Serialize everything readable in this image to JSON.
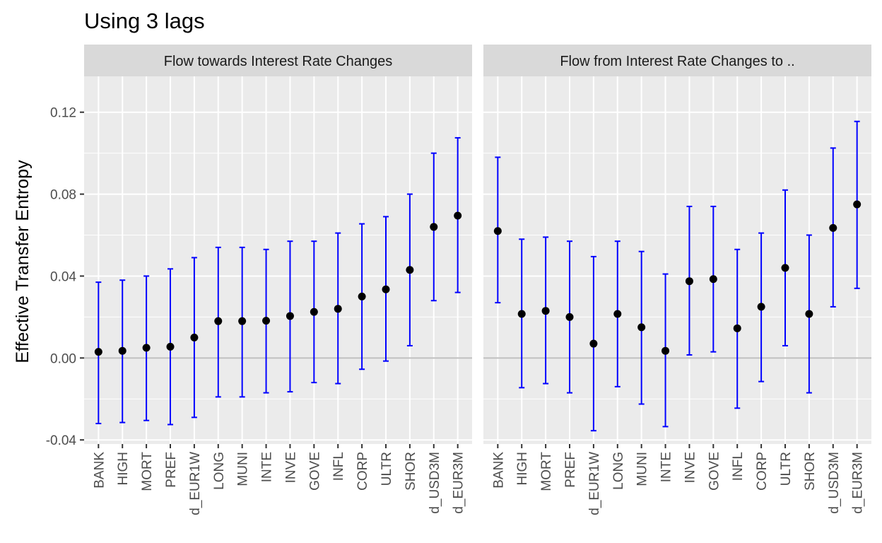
{
  "chart_data": {
    "type": "scatter",
    "title": "Using 3 lags",
    "ylabel": "Effective Transfer Entropy",
    "xlabel": "",
    "ylim": [
      -0.042,
      0.1375
    ],
    "yticks": [
      "-0.04",
      "0.00",
      "0.04",
      "0.08",
      "0.12"
    ],
    "ytick_values": [
      -0.04,
      0.0,
      0.04,
      0.08,
      0.12
    ],
    "reference_line": 0.0,
    "grid": true,
    "legend": "none",
    "point_color": "#000000",
    "errorbar_color": "#0000ff",
    "panels": [
      {
        "strip": "Flow towards Interest Rate Changes",
        "categories": [
          "BANK",
          "HIGH",
          "MORT",
          "PREF",
          "d_EUR1W",
          "LONG",
          "MUNI",
          "INTE",
          "INVE",
          "GOVE",
          "INFL",
          "CORP",
          "ULTR",
          "SHOR",
          "d_USD3M",
          "d_EUR3M"
        ],
        "values": [
          0.003,
          0.0035,
          0.005,
          0.0055,
          0.01,
          0.018,
          0.018,
          0.0182,
          0.0205,
          0.0225,
          0.024,
          0.03,
          0.0335,
          0.043,
          0.064,
          0.0695
        ],
        "lower": [
          -0.032,
          -0.0315,
          -0.0305,
          -0.0325,
          -0.029,
          -0.019,
          -0.019,
          -0.017,
          -0.0165,
          -0.012,
          -0.0125,
          -0.0055,
          -0.0015,
          0.006,
          0.028,
          0.032
        ],
        "upper": [
          0.037,
          0.038,
          0.04,
          0.0435,
          0.049,
          0.054,
          0.054,
          0.053,
          0.057,
          0.057,
          0.061,
          0.0655,
          0.069,
          0.08,
          0.1,
          0.1075
        ]
      },
      {
        "strip": "Flow from Interest Rate Changes to ..",
        "categories": [
          "BANK",
          "HIGH",
          "MORT",
          "PREF",
          "d_EUR1W",
          "LONG",
          "MUNI",
          "INTE",
          "INVE",
          "GOVE",
          "INFL",
          "CORP",
          "ULTR",
          "SHOR",
          "d_USD3M",
          "d_EUR3M"
        ],
        "values": [
          0.062,
          0.0215,
          0.023,
          0.02,
          0.007,
          0.0215,
          0.015,
          0.0035,
          0.0375,
          0.0385,
          0.0145,
          0.025,
          0.044,
          0.0215,
          0.0635,
          0.075
        ],
        "lower": [
          0.027,
          -0.0145,
          -0.0125,
          -0.017,
          -0.0355,
          -0.014,
          -0.0225,
          -0.0335,
          0.0015,
          0.003,
          -0.0245,
          -0.0115,
          0.006,
          -0.017,
          0.025,
          0.034
        ],
        "upper": [
          0.098,
          0.058,
          0.059,
          0.057,
          0.0495,
          0.057,
          0.052,
          0.041,
          0.074,
          0.074,
          0.053,
          0.061,
          0.082,
          0.06,
          0.1025,
          0.1155
        ]
      }
    ]
  }
}
